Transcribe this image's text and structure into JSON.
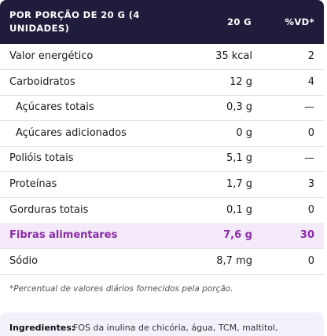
{
  "table": {
    "header": [
      "POR PORÇÃO DE 20 G (4 UNIDADES)",
      "20 G",
      "%VD*"
    ],
    "rows": [
      [
        "Valor energético",
        "35 kcal",
        "2"
      ],
      [
        "Carboidratos",
        "12 g",
        "4"
      ],
      [
        "Açúcares totais",
        "0,3 g",
        "—"
      ],
      [
        "Açúcares adicionados",
        "0 g",
        "0"
      ],
      [
        "Polióis totais",
        "5,1 g",
        "—"
      ],
      [
        "Proteínas",
        "1,7 g",
        "3"
      ],
      [
        "Gorduras totais",
        "0,1 g",
        "0"
      ],
      [
        "Fibras alimentares",
        "7,6 g",
        "30"
      ],
      [
        "Sódio",
        "8,7 mg",
        "0"
      ]
    ]
  },
  "footnote": "*Percentual de valores diários fornecidos pela porção.",
  "ingredients": {
    "label": "Ingredientes:",
    "text": "FOS da inulina de chicória, água, TCM, maltitol,"
  }
}
